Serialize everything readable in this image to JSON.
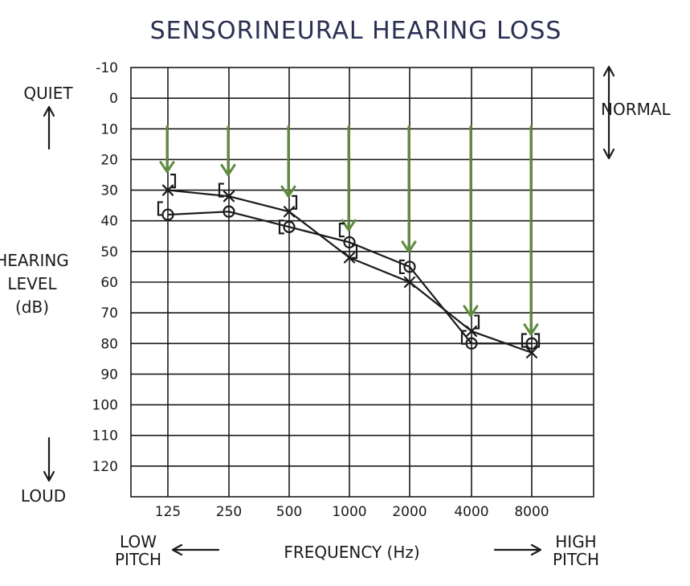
{
  "chart_data": {
    "type": "line",
    "title": "SENSORINEURAL HEARING LOSS",
    "xlabel": "FREQUENCY (Hz)",
    "ylabel_lines": [
      "HEARING",
      "LEVEL",
      "(dB)"
    ],
    "categories": [
      "125",
      "250",
      "500",
      "1000",
      "2000",
      "4000",
      "8000"
    ],
    "y_ticks": [
      "-10",
      "0",
      "10",
      "20",
      "30",
      "40",
      "50",
      "60",
      "70",
      "80",
      "90",
      "100",
      "110",
      "120"
    ],
    "ylim": [
      -10,
      130
    ],
    "y_inverted": true,
    "grid": true,
    "series": [
      {
        "name": "X",
        "marker": "x",
        "values": [
          30,
          32,
          37,
          52,
          60,
          76,
          83
        ]
      },
      {
        "name": "O",
        "marker": "o",
        "values": [
          38,
          37,
          42,
          47,
          55,
          80,
          80
        ]
      },
      {
        "name": "]",
        "marker": "right-bracket",
        "values": [
          27,
          null,
          34,
          50,
          null,
          73,
          79
        ]
      },
      {
        "name": "[",
        "marker": "left-bracket",
        "values": [
          36,
          30,
          42,
          43,
          55,
          78,
          79
        ]
      }
    ],
    "hearing_change_arrows": {
      "color": "#5e8b3d",
      "from": 15,
      "to": [
        24,
        25,
        32,
        43,
        50,
        71,
        77
      ]
    },
    "annotations": {
      "quiet": "QUIET",
      "loud": "LOUD",
      "normal": "NORMAL",
      "low_pitch": [
        "LOW",
        "PITCH"
      ],
      "high_pitch": [
        "HIGH",
        "PITCH"
      ],
      "normal_range": [
        -10,
        20
      ]
    }
  },
  "colors": {
    "title": "#2b2f52",
    "ink": "#1a1a1a",
    "arrow_green": "#5e8b3d"
  }
}
